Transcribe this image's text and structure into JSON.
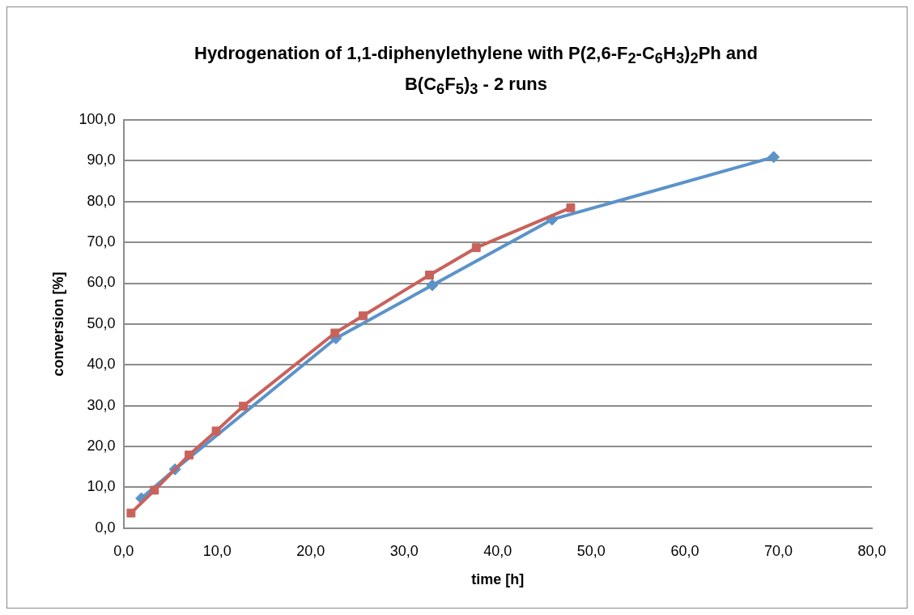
{
  "chart_data": {
    "type": "line",
    "title": "Hydrogenation of 1,1-diphenylethylene with P(2,6-F$_{2}$-C$_{6}$H$_{3}$)$_{2}$Ph  and B(C$_{6}$F$_{5}$)$_{3}$  - 2 runs",
    "xlabel": "time [h]",
    "ylabel": "conversion [%]",
    "series": [
      {
        "color": "#5b93c9",
        "marker": "diamond",
        "x": [
          1.9,
          5.5,
          22.7,
          33,
          45.8,
          69.5
        ],
        "values": [
          7.3,
          14.4,
          46.5,
          59.5,
          75.6,
          90.9
        ]
      },
      {
        "color": "#c8625b",
        "marker": "square",
        "x": [
          0.8,
          3.3,
          7.0,
          9.9,
          12.8,
          22.6,
          25.6,
          32.7,
          37.7,
          47.8
        ],
        "values": [
          3.7,
          9.3,
          17.9,
          23.8,
          29.9,
          47.8,
          52.0,
          62.0,
          68.7,
          78.5
        ]
      }
    ],
    "xlim": [
      0,
      80
    ],
    "xticks": [
      {
        "value": 0,
        "label": "0,0"
      },
      {
        "value": 10,
        "label": "10,0"
      },
      {
        "value": 20,
        "label": "20,0"
      },
      {
        "value": 30,
        "label": "30,0"
      },
      {
        "value": 40,
        "label": "40,0"
      },
      {
        "value": 50,
        "label": "50,0"
      },
      {
        "value": 60,
        "label": "60,0"
      },
      {
        "value": 70,
        "label": "70,0"
      },
      {
        "value": 80,
        "label": "80,0"
      }
    ],
    "ylim": [
      0,
      100
    ],
    "yticks": [
      {
        "value": 0,
        "label": "0,0"
      },
      {
        "value": 10,
        "label": "10,0"
      },
      {
        "value": 20,
        "label": "20,0"
      },
      {
        "value": 30,
        "label": "30,0"
      },
      {
        "value": 40,
        "label": "40,0"
      },
      {
        "value": 50,
        "label": "50,0"
      },
      {
        "value": 60,
        "label": "60,0"
      },
      {
        "value": 70,
        "label": "70,0"
      },
      {
        "value": 80,
        "label": "80,0"
      },
      {
        "value": 90,
        "label": "90,0"
      },
      {
        "value": 100,
        "label": "100,0"
      }
    ],
    "grid": "y",
    "legend": false,
    "line_style": "solid"
  }
}
